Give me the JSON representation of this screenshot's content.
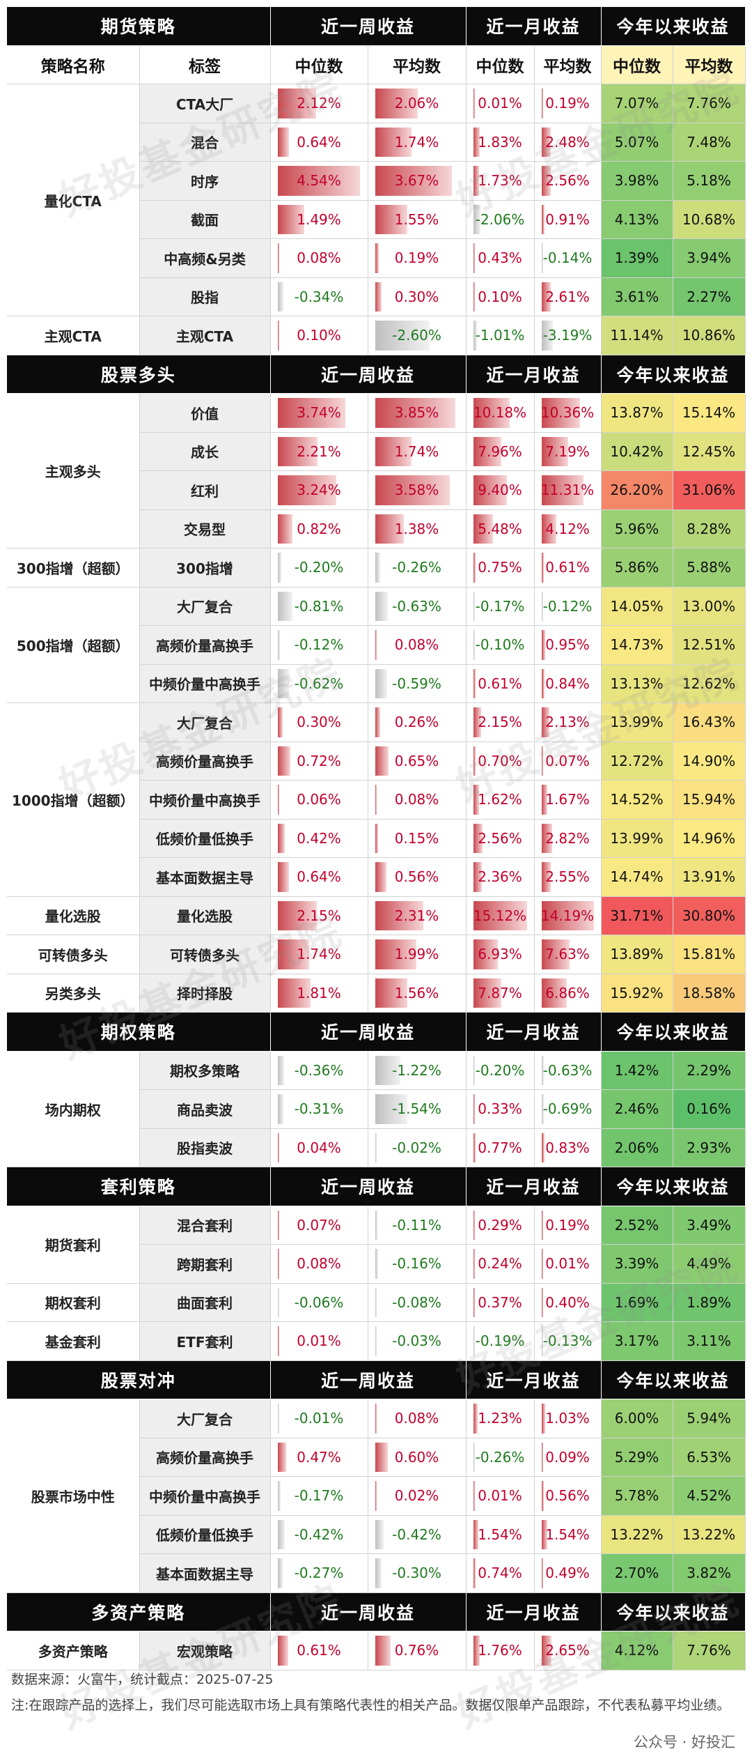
{
  "header_labels": {
    "week": "近一周收益",
    "month": "近一月收益",
    "ytd": "今年以来收益"
  },
  "sub_labels": {
    "name": "策略名称",
    "tag": "标签",
    "median": "中位数",
    "mean": "平均数"
  },
  "sections": [
    {
      "title": "期货策略",
      "with_sub": true,
      "groups": [
        {
          "name": "量化CTA",
          "rows": [
            {
              "label": "CTA大厂",
              "wm": "2.12%",
              "wa": "2.06%",
              "mm": "0.01%",
              "ma": "0.19%",
              "ym": "7.07%",
              "ya": "7.76%"
            },
            {
              "label": "混合",
              "wm": "0.64%",
              "wa": "1.74%",
              "mm": "1.83%",
              "ma": "2.48%",
              "ym": "5.07%",
              "ya": "7.48%"
            },
            {
              "label": "时序",
              "wm": "4.54%",
              "wa": "3.67%",
              "mm": "1.73%",
              "ma": "2.56%",
              "ym": "3.98%",
              "ya": "5.18%"
            },
            {
              "label": "截面",
              "wm": "1.49%",
              "wa": "1.55%",
              "mm": "-2.06%",
              "ma": "0.91%",
              "ym": "4.13%",
              "ya": "10.68%"
            },
            {
              "label": "中高频&另类",
              "wm": "0.08%",
              "wa": "0.19%",
              "mm": "0.43%",
              "ma": "-0.14%",
              "ym": "1.39%",
              "ya": "3.94%"
            },
            {
              "label": "股指",
              "wm": "-0.34%",
              "wa": "0.30%",
              "mm": "0.10%",
              "ma": "2.61%",
              "ym": "3.61%",
              "ya": "2.27%"
            }
          ]
        },
        {
          "name": "主观CTA",
          "rows": [
            {
              "label": "主观CTA",
              "wm": "0.10%",
              "wa": "-2.60%",
              "mm": "-1.01%",
              "ma": "-3.19%",
              "ym": "11.14%",
              "ya": "10.86%"
            }
          ]
        }
      ]
    },
    {
      "title": "股票多头",
      "with_sub": false,
      "groups": [
        {
          "name": "主观多头",
          "rows": [
            {
              "label": "价值",
              "wm": "3.74%",
              "wa": "3.85%",
              "mm": "10.18%",
              "ma": "10.36%",
              "ym": "13.87%",
              "ya": "15.14%"
            },
            {
              "label": "成长",
              "wm": "2.21%",
              "wa": "1.74%",
              "mm": "7.96%",
              "ma": "7.19%",
              "ym": "10.42%",
              "ya": "12.45%"
            },
            {
              "label": "红利",
              "wm": "3.24%",
              "wa": "3.58%",
              "mm": "9.40%",
              "ma": "11.31%",
              "ym": "26.20%",
              "ya": "31.06%"
            },
            {
              "label": "交易型",
              "wm": "0.82%",
              "wa": "1.38%",
              "mm": "5.48%",
              "ma": "4.12%",
              "ym": "5.96%",
              "ya": "8.28%"
            }
          ]
        },
        {
          "name": "300指增（超额）",
          "rows": [
            {
              "label": "300指增",
              "wm": "-0.20%",
              "wa": "-0.26%",
              "mm": "0.75%",
              "ma": "0.61%",
              "ym": "5.86%",
              "ya": "5.88%"
            }
          ]
        },
        {
          "name": "500指增（超额）",
          "rows": [
            {
              "label": "大厂复合",
              "wm": "-0.81%",
              "wa": "-0.63%",
              "mm": "-0.17%",
              "ma": "-0.12%",
              "ym": "14.05%",
              "ya": "13.00%"
            },
            {
              "label": "高频价量高换手",
              "wm": "-0.12%",
              "wa": "0.08%",
              "mm": "-0.10%",
              "ma": "0.95%",
              "ym": "14.73%",
              "ya": "12.51%"
            },
            {
              "label": "中频价量中高换手",
              "wm": "-0.62%",
              "wa": "-0.59%",
              "mm": "0.61%",
              "ma": "0.84%",
              "ym": "13.13%",
              "ya": "12.62%"
            }
          ]
        },
        {
          "name": "1000指增（超额）",
          "rows": [
            {
              "label": "大厂复合",
              "wm": "0.30%",
              "wa": "0.26%",
              "mm": "2.15%",
              "ma": "2.13%",
              "ym": "13.99%",
              "ya": "16.43%"
            },
            {
              "label": "高频价量高换手",
              "wm": "0.72%",
              "wa": "0.65%",
              "mm": "0.70%",
              "ma": "0.07%",
              "ym": "12.72%",
              "ya": "14.90%"
            },
            {
              "label": "中频价量中高换手",
              "wm": "0.06%",
              "wa": "0.08%",
              "mm": "1.62%",
              "ma": "1.67%",
              "ym": "14.52%",
              "ya": "15.94%"
            },
            {
              "label": "低频价量低换手",
              "wm": "0.42%",
              "wa": "0.15%",
              "mm": "2.56%",
              "ma": "2.82%",
              "ym": "13.99%",
              "ya": "14.96%"
            },
            {
              "label": "基本面数据主导",
              "wm": "0.64%",
              "wa": "0.56%",
              "mm": "2.36%",
              "ma": "2.55%",
              "ym": "14.74%",
              "ya": "13.91%"
            }
          ]
        },
        {
          "name": "量化选股",
          "rows": [
            {
              "label": "量化选股",
              "wm": "2.15%",
              "wa": "2.31%",
              "mm": "15.12%",
              "ma": "14.19%",
              "ym": "31.71%",
              "ya": "30.80%"
            }
          ]
        },
        {
          "name": "可转债多头",
          "rows": [
            {
              "label": "可转债多头",
              "wm": "1.74%",
              "wa": "1.99%",
              "mm": "6.93%",
              "ma": "7.63%",
              "ym": "13.89%",
              "ya": "15.81%"
            }
          ]
        },
        {
          "name": "另类多头",
          "rows": [
            {
              "label": "择时择股",
              "wm": "1.81%",
              "wa": "1.56%",
              "mm": "7.87%",
              "ma": "6.86%",
              "ym": "15.92%",
              "ya": "18.58%"
            }
          ]
        }
      ]
    },
    {
      "title": "期权策略",
      "with_sub": false,
      "groups": [
        {
          "name": "场内期权",
          "rows": [
            {
              "label": "期权多策略",
              "wm": "-0.36%",
              "wa": "-1.22%",
              "mm": "-0.20%",
              "ma": "-0.63%",
              "ym": "1.42%",
              "ya": "2.29%"
            },
            {
              "label": "商品卖波",
              "wm": "-0.31%",
              "wa": "-1.54%",
              "mm": "0.33%",
              "ma": "-0.69%",
              "ym": "2.46%",
              "ya": "0.16%"
            },
            {
              "label": "股指卖波",
              "wm": "0.04%",
              "wa": "-0.02%",
              "mm": "0.77%",
              "ma": "0.83%",
              "ym": "2.06%",
              "ya": "2.93%"
            }
          ]
        }
      ]
    },
    {
      "title": "套利策略",
      "with_sub": false,
      "groups": [
        {
          "name": "期货套利",
          "rows": [
            {
              "label": "混合套利",
              "wm": "0.07%",
              "wa": "-0.11%",
              "mm": "0.29%",
              "ma": "0.19%",
              "ym": "2.52%",
              "ya": "3.49%"
            },
            {
              "label": "跨期套利",
              "wm": "0.08%",
              "wa": "-0.16%",
              "mm": "0.24%",
              "ma": "0.01%",
              "ym": "3.39%",
              "ya": "4.49%"
            }
          ]
        },
        {
          "name": "期权套利",
          "rows": [
            {
              "label": "曲面套利",
              "wm": "-0.06%",
              "wa": "-0.08%",
              "mm": "0.37%",
              "ma": "0.40%",
              "ym": "1.69%",
              "ya": "1.89%"
            }
          ]
        },
        {
          "name": "基金套利",
          "rows": [
            {
              "label": "ETF套利",
              "wm": "0.01%",
              "wa": "-0.03%",
              "mm": "-0.19%",
              "ma": "-0.13%",
              "ym": "3.17%",
              "ya": "3.11%"
            }
          ]
        }
      ]
    },
    {
      "title": "股票对冲",
      "with_sub": false,
      "groups": [
        {
          "name": "股票市场中性",
          "rows": [
            {
              "label": "大厂复合",
              "wm": "-0.01%",
              "wa": "0.08%",
              "mm": "1.23%",
              "ma": "1.03%",
              "ym": "6.00%",
              "ya": "5.94%"
            },
            {
              "label": "高频价量高换手",
              "wm": "0.47%",
              "wa": "0.60%",
              "mm": "-0.26%",
              "ma": "0.09%",
              "ym": "5.29%",
              "ya": "6.53%"
            },
            {
              "label": "中频价量中高换手",
              "wm": "-0.17%",
              "wa": "0.02%",
              "mm": "0.01%",
              "ma": "0.56%",
              "ym": "5.78%",
              "ya": "4.52%"
            },
            {
              "label": "低频价量低换手",
              "wm": "-0.42%",
              "wa": "-0.42%",
              "mm": "1.54%",
              "ma": "1.54%",
              "ym": "13.22%",
              "ya": "13.22%"
            },
            {
              "label": "基本面数据主导",
              "wm": "-0.27%",
              "wa": "-0.30%",
              "mm": "0.74%",
              "ma": "0.49%",
              "ym": "2.70%",
              "ya": "3.82%"
            }
          ]
        }
      ]
    },
    {
      "title": "多资产策略",
      "with_sub": false,
      "groups": [
        {
          "name": "多资产策略",
          "rows": [
            {
              "label": "宏观策略",
              "wm": "0.61%",
              "wa": "0.76%",
              "mm": "1.76%",
              "ma": "2.65%",
              "ym": "4.12%",
              "ya": "7.76%"
            }
          ]
        }
      ]
    }
  ],
  "watermark": "好投基金研究院",
  "footer": {
    "source": "数据来源：火富牛，统计截点：2025-07-25",
    "note": "注:在跟踪产品的选择上，我们尽可能选取市场上具有策略代表性的相关产品。数据仅限单产品跟踪，不代表私募平均业绩。"
  },
  "logo": "公众号 · 好投汇",
  "colors": {
    "header_bg": "#0b0b0b",
    "positive": "#c2002c",
    "negative": "#1f7a1f",
    "ytd_low": "#5cbf6a",
    "ytd_mid": "#fbe983",
    "ytd_high": "#f0555a"
  }
}
